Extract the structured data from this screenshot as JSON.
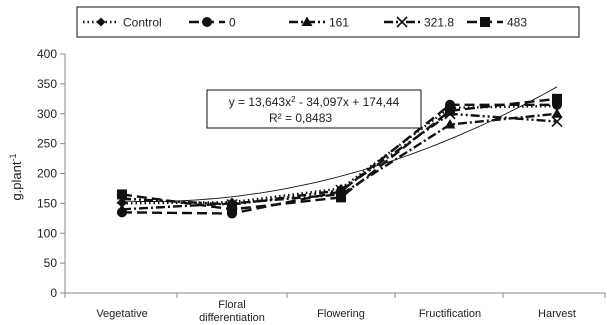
{
  "chart_data": {
    "type": "line",
    "categories": [
      "Vegetative",
      "Floral\ndifferentiation",
      "Flowering",
      "Fructification",
      "Harvest"
    ],
    "ylabel": "g.plant-1",
    "ylim": [
      0,
      400
    ],
    "yticks": [
      0,
      50,
      100,
      150,
      200,
      250,
      300,
      350,
      400
    ],
    "grid": false,
    "legend_position": "top",
    "series": [
      {
        "name": "Control",
        "values": [
          150,
          152,
          175,
          310,
          313
        ],
        "color": "#111111",
        "dash": "dotted",
        "marker": "diamond"
      },
      {
        "name": "0",
        "values": [
          135,
          133,
          170,
          315,
          315
        ],
        "color": "#111111",
        "dash": "long-dash",
        "marker": "circle"
      },
      {
        "name": "161",
        "values": [
          140,
          150,
          165,
          282,
          300
        ],
        "color": "#111111",
        "dash": "dash-dot",
        "marker": "triangle"
      },
      {
        "name": "321.8",
        "values": [
          158,
          148,
          172,
          300,
          287
        ],
        "color": "#111111",
        "dash": "dash-dot-dot",
        "marker": "x"
      },
      {
        "name": "483",
        "values": [
          165,
          140,
          160,
          305,
          325
        ],
        "color": "#111111",
        "dash": "long-dash",
        "marker": "square"
      }
    ],
    "trendline": {
      "a": 13.643,
      "b": -34.097,
      "c": 174.44,
      "equation_lhs": "y = 13,643x",
      "equation_sup": "2",
      "equation_rhs": " - 34,097x + 174,44",
      "r2_label": "R² = 0,8483"
    }
  }
}
